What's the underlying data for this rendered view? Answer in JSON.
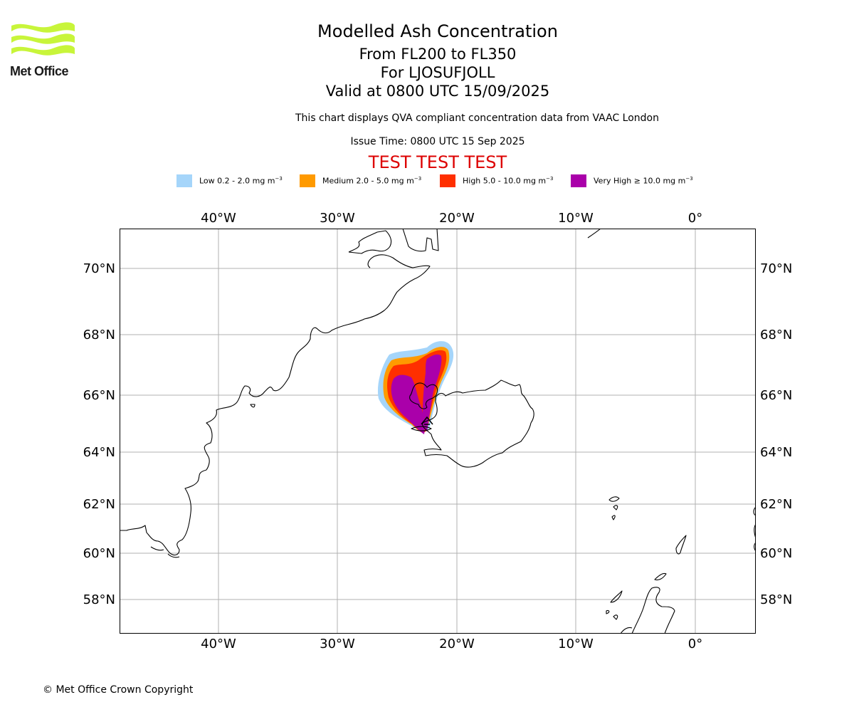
{
  "header": {
    "title": "Modelled Ash Concentration",
    "levels": "From FL200 to FL350",
    "volcano": "For LJOSUFJOLL",
    "valid": "Valid at 0800 UTC 15/09/2025",
    "subtitle": "This chart displays QVA compliant concentration data from VAAC London",
    "issue_time": "Issue Time: 0800 UTC 15 Sep 2025",
    "test_banner": "TEST TEST TEST"
  },
  "logo": {
    "text": "Met Office",
    "color": "#c8f53a"
  },
  "legend": [
    {
      "label": "Low 0.2 - 2.0 mg m",
      "unit_sup": "−3",
      "color": "#a5d5fa"
    },
    {
      "label": "Medium 2.0 - 5.0 mg m",
      "unit_sup": "−3",
      "color": "#ff9a00"
    },
    {
      "label": "High 5.0 - 10.0 mg m",
      "unit_sup": "−3",
      "color": "#ff2f00"
    },
    {
      "label": "Very High  ≥  10.0 mg m",
      "unit_sup": "−3",
      "color": "#aa00aa"
    }
  ],
  "map": {
    "lon_labels": [
      "40°W",
      "30°W",
      "20°W",
      "10°W",
      "0°"
    ],
    "lat_labels": [
      "70°N",
      "68°N",
      "66°N",
      "64°N",
      "62°N",
      "60°N",
      "58°N"
    ],
    "grid": true
  },
  "footer": {
    "copyright": "© Met Office Crown Copyright"
  }
}
